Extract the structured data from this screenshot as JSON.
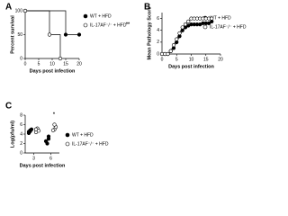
{
  "chart_data": [
    {
      "type": "step",
      "label": "A",
      "xlabel": "Days post infection",
      "ylabel": "Percent survival",
      "annotation": "**",
      "xlim": [
        0,
        20
      ],
      "xticks": [
        0,
        5,
        10,
        15,
        20
      ],
      "ylim": [
        0,
        100
      ],
      "yticks": [
        0,
        50,
        100
      ],
      "series": [
        {
          "name": "WT + HFD",
          "color": "#000000",
          "filled": true,
          "x": [
            0,
            15,
            20
          ],
          "values": [
            100,
            50,
            50
          ]
        },
        {
          "name": "IL-17AF⁻/⁻ + HFD",
          "color": "#000000",
          "filled": false,
          "x": [
            0,
            9,
            13
          ],
          "values": [
            100,
            50,
            0
          ]
        }
      ]
    },
    {
      "type": "line",
      "label": "B",
      "xlabel": "Days post infection",
      "ylabel": "Mean Pathology Score",
      "xlim": [
        0,
        20
      ],
      "xticks": [
        0,
        5,
        10,
        15,
        20
      ],
      "ylim": [
        0,
        7
      ],
      "yticks": [
        0,
        2,
        4,
        6
      ],
      "series": [
        {
          "name": "WT + HFD",
          "color": "#000000",
          "filled": true,
          "x": [
            0,
            1,
            2,
            3,
            4,
            5,
            6,
            7,
            8,
            9,
            10,
            11,
            12,
            13,
            14,
            15,
            16,
            17
          ],
          "values": [
            0,
            0,
            0,
            0.5,
            1,
            2,
            3,
            4,
            4.5,
            4.8,
            5,
            5,
            5,
            5,
            5.2,
            5.2,
            5.2,
            5.5
          ]
        },
        {
          "name": "IL-17AF⁻/⁻ + HFD",
          "color": "#000000",
          "filled": false,
          "x": [
            0,
            1,
            2,
            3,
            4,
            5,
            6,
            7,
            8,
            9,
            10,
            11,
            12,
            13,
            14,
            15,
            16,
            17
          ],
          "values": [
            0,
            0,
            0,
            0.5,
            1.5,
            2.5,
            3.5,
            4.5,
            5,
            5.5,
            6,
            6,
            6,
            6,
            6,
            6,
            6,
            6
          ]
        }
      ]
    },
    {
      "type": "scatter",
      "label": "C",
      "xlabel": "Days post infection",
      "ylabel": "Log(pfu/ml)",
      "annotation": "*",
      "xlim": [
        1.5,
        7.5
      ],
      "xticks": [
        3,
        6
      ],
      "ylim": [
        0,
        8
      ],
      "yticks": [
        0,
        2,
        4,
        6,
        8
      ],
      "series": [
        {
          "name": "WT + HFD",
          "color": "#000000",
          "filled": true,
          "x": [
            3,
            3,
            3,
            3,
            3,
            6,
            6,
            6,
            6
          ],
          "values": [
            4.5,
            4.8,
            5.0,
            4.2,
            4.6,
            3.0,
            2.5,
            2.0,
            3.5
          ]
        },
        {
          "name": "IL-17AF⁻/⁻ + HFD",
          "color": "#000000",
          "filled": false,
          "x": [
            3,
            3,
            3,
            3,
            6,
            6,
            6,
            6
          ],
          "values": [
            4.4,
            5.2,
            4.7,
            5.0,
            5.0,
            5.5,
            4.8,
            6.0
          ]
        }
      ]
    }
  ]
}
